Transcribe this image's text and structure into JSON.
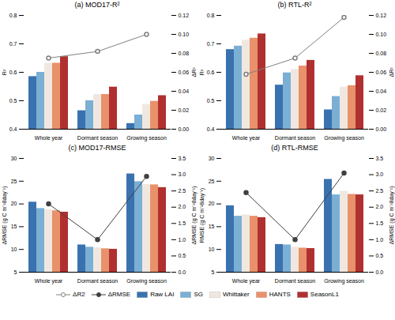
{
  "chart_data": [
    {
      "type": "bar",
      "title": "(a) MOD17-R²",
      "categories": [
        "Whole year",
        "Dormant season",
        "Growing season"
      ],
      "ylabel": "R²",
      "y2label": "ΔR²",
      "ylim": [
        0.4,
        0.8
      ],
      "yticks": [
        0.4,
        0.5,
        0.6,
        0.7,
        0.8
      ],
      "y2lim": [
        0.0,
        0.12
      ],
      "y2ticks": [
        {
          "value": 0.0,
          "label": "0.00"
        },
        0.02,
        0.04,
        0.06,
        0.08,
        {
          "value": 0.1,
          "label": "0.10"
        },
        0.12
      ],
      "series": [
        {
          "name": "Raw LAI",
          "color": "#3a72b0",
          "values": [
            0.585,
            0.465,
            0.42
          ]
        },
        {
          "name": "SG",
          "color": "#7bafd4",
          "values": [
            0.6,
            0.5,
            0.45
          ]
        },
        {
          "name": "Whittaker",
          "color": "#f0e8e0",
          "values": [
            0.632,
            0.522,
            0.487
          ]
        },
        {
          "name": "HANTS",
          "color": "#e8916a",
          "values": [
            0.632,
            0.522,
            0.498
          ]
        },
        {
          "name": "SeasonL1",
          "color": "#b03030",
          "values": [
            0.655,
            0.548,
            0.518
          ]
        },
        {
          "name": "ΔR2",
          "type": "line",
          "axis": "y2",
          "color": "gray",
          "marker": "open_circle",
          "values": [
            0.075,
            0.082,
            0.1
          ]
        }
      ]
    },
    {
      "type": "bar",
      "title": "(b) RTL-R²",
      "categories": [
        "Whole year",
        "Dormant season",
        "Growing season"
      ],
      "ylabel": "R²",
      "y2label": "ΔR²",
      "ylim": [
        0.4,
        0.8
      ],
      "yticks": [
        0.4,
        0.5,
        0.6,
        0.7,
        0.8
      ],
      "y2lim": [
        0.0,
        0.12
      ],
      "y2ticks": [
        {
          "value": 0.0,
          "label": "0.00"
        },
        0.02,
        0.04,
        0.06,
        0.08,
        {
          "value": 0.1,
          "label": "0.10"
        },
        0.12
      ],
      "series": [
        {
          "name": "Raw LAI",
          "color": "#3a72b0",
          "values": [
            0.68,
            0.555,
            0.468
          ]
        },
        {
          "name": "SG",
          "color": "#7bafd4",
          "values": [
            0.692,
            0.598,
            0.515
          ]
        },
        {
          "name": "Whittaker",
          "color": "#f0e8e0",
          "values": [
            0.713,
            0.61,
            0.548
          ]
        },
        {
          "name": "HANTS",
          "color": "#e8916a",
          "values": [
            0.72,
            0.622,
            0.553
          ]
        },
        {
          "name": "SeasonL1",
          "color": "#b03030",
          "values": [
            0.735,
            0.642,
            0.588
          ]
        },
        {
          "name": "ΔR2",
          "type": "line",
          "axis": "y2",
          "color": "gray",
          "marker": "open_circle",
          "values": [
            0.058,
            0.075,
            0.118
          ]
        }
      ]
    },
    {
      "type": "bar",
      "title": "(c) MOD17-RMSE",
      "categories": [
        "Whole year",
        "Dormant season",
        "Growing season"
      ],
      "ylabel": "ΔRMSE (g C m⁻²8day⁻¹)",
      "y2label": "ΔRMSE (g C m⁻²8day⁻¹)",
      "ylim": [
        5,
        30
      ],
      "yticks": [
        5,
        10,
        15,
        20,
        25,
        30
      ],
      "y2lim": [
        0.0,
        3.5
      ],
      "y2ticks": [
        {
          "value": 0.0,
          "label": "0.0"
        },
        0.5,
        {
          "value": 1.0,
          "label": "1.0"
        },
        1.5,
        {
          "value": 2.0,
          "label": "2.0"
        },
        2.5,
        {
          "value": 3.0,
          "label": "3.0"
        },
        3.5
      ],
      "series": [
        {
          "name": "Raw LAI",
          "color": "#3a72b0",
          "values": [
            20.4,
            11.0,
            26.6
          ]
        },
        {
          "name": "SG",
          "color": "#7bafd4",
          "values": [
            19.0,
            10.5,
            24.9
          ]
        },
        {
          "name": "Whittaker",
          "color": "#f0e8e0",
          "values": [
            18.7,
            10.35,
            24.3
          ]
        },
        {
          "name": "HANTS",
          "color": "#e8916a",
          "values": [
            18.5,
            10.15,
            24.2
          ]
        },
        {
          "name": "SeasonL1",
          "color": "#b03030",
          "values": [
            18.2,
            10.05,
            23.6
          ]
        },
        {
          "name": "ΔRMSE",
          "type": "line",
          "axis": "y2",
          "color": "#404040",
          "marker": "circle",
          "values": [
            2.1,
            1.0,
            2.95
          ]
        }
      ]
    },
    {
      "type": "bar",
      "title": "(d) RTL-RMSE",
      "categories": [
        "Whole year",
        "Dormant season",
        "Growing season"
      ],
      "ylabel": "RMSE (g C m⁻²8day⁻¹)",
      "y2label": "ΔRMSE (g C m⁻²8day⁻¹)",
      "ylim": [
        5,
        30
      ],
      "yticks": [
        5,
        10,
        15,
        20,
        25,
        30
      ],
      "y2lim": [
        0.0,
        3.5
      ],
      "y2ticks": [
        {
          "value": 0.0,
          "label": "0.0"
        },
        0.5,
        {
          "value": 1.0,
          "label": "1.0"
        },
        1.5,
        {
          "value": 2.0,
          "label": "2.0"
        },
        2.5,
        {
          "value": 3.0,
          "label": "3.0"
        },
        3.5
      ],
      "series": [
        {
          "name": "Raw LAI",
          "color": "#3a72b0",
          "values": [
            19.6,
            11.1,
            25.4
          ]
        },
        {
          "name": "SG",
          "color": "#7bafd4",
          "values": [
            17.3,
            11.0,
            22.0
          ]
        },
        {
          "name": "Whittaker",
          "color": "#f0e8e0",
          "values": [
            17.6,
            10.5,
            22.8
          ]
        },
        {
          "name": "HANTS",
          "color": "#e8916a",
          "values": [
            17.3,
            10.3,
            22.1
          ]
        },
        {
          "name": "SeasonL1",
          "color": "#b03030",
          "values": [
            17.0,
            10.2,
            22.0
          ]
        },
        {
          "name": "ΔRMSE",
          "type": "line",
          "axis": "y2",
          "color": "#404040",
          "marker": "circle",
          "values": [
            2.45,
            1.0,
            3.05
          ]
        }
      ]
    }
  ]
}
